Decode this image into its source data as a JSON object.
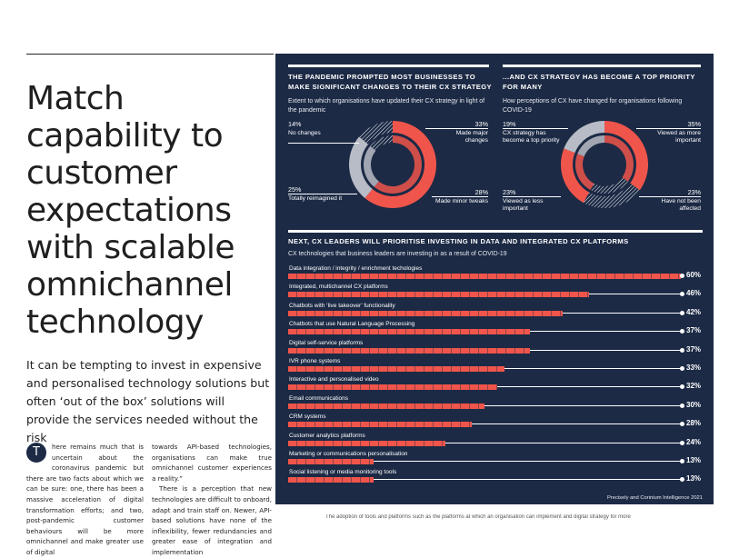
{
  "article": {
    "headline": "Match capability to customer expectations with scalable omnichannel technology",
    "subhead": "It can be tempting to invest in expensive and personalised technology solutions but often ‘out of the box’ solutions will provide the services needed without the risk",
    "drop_cap": "T",
    "col1_text": "here remains much that is uncertain about the coronavirus pandemic but there are two facts about which we can be sure: one, there has been a massive acceleration of digital transformation efforts; and two, post-pandemic customer behaviours will be more omnichannel and make greater use of digital",
    "col2_para1": "towards API-based technologies, organisations can make true omnichannel customer experiences a reality.”",
    "col2_para2": "There is a perception that new technologies are difficult to onboard, adapt and train staff on. Newer, API-based solutions have none of the inflexibility, fewer redundancies and greater ease of integration and implementation",
    "bottom_text": "The adoption of tools and platforms such as the platforms at which an organisation can implement and digital strategy for more"
  },
  "panel": {
    "left_chart": {
      "title": "THE PANDEMIC PROMPTED MOST BUSINESSES TO MAKE SIGNIFICANT CHANGES TO THEIR CX STRATEGY",
      "subtitle": "Extent to which organisations have updated their CX strategy in light of the pandemic",
      "segments": [
        {
          "label": "Made major changes",
          "pct_text": "33%",
          "value": 33,
          "color": "#f0554b"
        },
        {
          "label": "Made minor tweaks",
          "pct_text": "28%",
          "value": 28,
          "color": "#f0554b"
        },
        {
          "label": "Totally reimagined it",
          "pct_text": "25%",
          "value": 25,
          "color": "#b8bcc6"
        },
        {
          "label": "No changes",
          "pct_text": "14%",
          "value": 14,
          "color": "hatch"
        }
      ]
    },
    "right_chart": {
      "title": "...AND CX STRATEGY HAS BECOME A TOP PRIORITY FOR MANY",
      "subtitle": "How perceptions of CX have changed for organisations following COVID-19",
      "segments": [
        {
          "label": "Viewed as more important",
          "pct_text": "35%",
          "value": 35,
          "color": "#f0554b"
        },
        {
          "label": "Have not been affected",
          "pct_text": "23%",
          "value": 23,
          "color": "hatch"
        },
        {
          "label": "Viewed as less important",
          "pct_text": "23%",
          "value": 23,
          "color": "#f0554b"
        },
        {
          "label": "CX strategy has become a top priority",
          "pct_text": "19%",
          "value": 19,
          "color": "#b8bcc6"
        }
      ]
    },
    "bar_chart": {
      "title": "NEXT, CX LEADERS WILL PRIORITISE INVESTING IN DATA AND INTEGRATED CX PLATFORMS",
      "subtitle": "CX technologies that business leaders are investing in as a result of COVID-19",
      "max": 60,
      "items": [
        {
          "label": "Data integration / integrity / enrichment techologies",
          "value": 60,
          "value_text": "60%"
        },
        {
          "label": "Integrated, multichannel CX platforms",
          "value": 46,
          "value_text": "46%"
        },
        {
          "label": "Chatbots with ‘live takeover’ functionality",
          "value": 42,
          "value_text": "42%"
        },
        {
          "label": "Chatbots that use Natural Language Processing",
          "value": 37,
          "value_text": "37%"
        },
        {
          "label": "Digital self-service platforms",
          "value": 37,
          "value_text": "37%"
        },
        {
          "label": "IVR phone systems",
          "value": 33,
          "value_text": "33%"
        },
        {
          "label": "Interactive and personalised video",
          "value": 32,
          "value_text": "32%"
        },
        {
          "label": "Email communications",
          "value": 30,
          "value_text": "30%"
        },
        {
          "label": "CRM systems",
          "value": 28,
          "value_text": "28%"
        },
        {
          "label": "Customer analytics platforms",
          "value": 24,
          "value_text": "24%"
        },
        {
          "label": "Marketing or communications personalisation",
          "value": 13,
          "value_text": "13%"
        },
        {
          "label": "Social listening or media monitoring tools",
          "value": 13,
          "value_text": "13%"
        }
      ]
    },
    "source": "Precisely and Corinium Intelligence 2021"
  },
  "colors": {
    "panel_bg": "#1c2a45",
    "accent": "#f0554b",
    "grey": "#b8bcc6",
    "white": "#ffffff"
  }
}
